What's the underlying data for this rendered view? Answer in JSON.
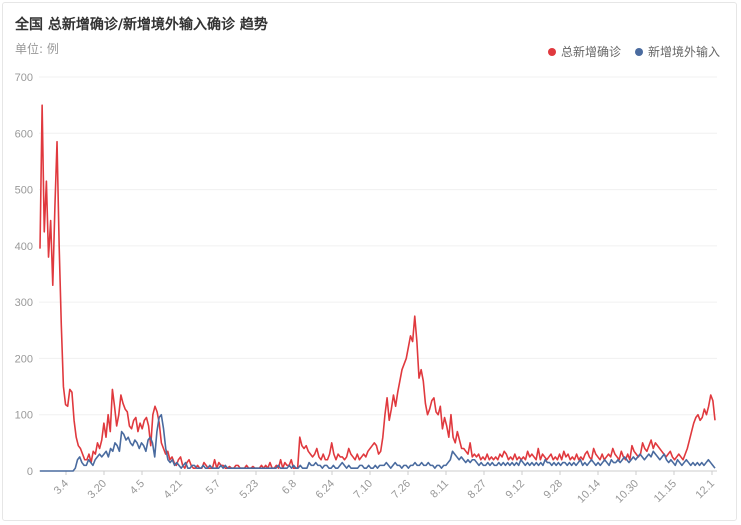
{
  "header": {
    "title": "全国 总新增确诊/新增境外输入确诊 趋势",
    "unit": "单位: 例"
  },
  "colors": {
    "total": "#e0393e",
    "imported": "#4a6b9f",
    "grid": "#f0f0f0",
    "axis": "#cccccc"
  },
  "chart_data": {
    "type": "line",
    "title": "全国 总新增确诊/新增境外输入确诊 趋势",
    "ylabel": "单位: 例",
    "ylim": [
      0,
      700
    ],
    "yticks": [
      0,
      100,
      200,
      300,
      400,
      500,
      600,
      700
    ],
    "grid": true,
    "legend_position": "top-right",
    "x_start": "2.20",
    "x_end": "12.3",
    "x_tick_labels": [
      "3.4",
      "3.20",
      "4.5",
      "4.21",
      "5.7",
      "5.23",
      "6.8",
      "6.24",
      "7.10",
      "7.26",
      "8.11",
      "8.27",
      "9.12",
      "9.28",
      "10.14",
      "10.30",
      "11.15",
      "12.1"
    ],
    "series": [
      {
        "name": "总新增确诊",
        "key": "total",
        "values": [
          395,
          650,
          425,
          515,
          380,
          445,
          330,
          470,
          585,
          400,
          260,
          150,
          118,
          115,
          145,
          140,
          90,
          60,
          45,
          40,
          30,
          20,
          20,
          30,
          15,
          35,
          30,
          50,
          40,
          55,
          85,
          60,
          100,
          70,
          145,
          115,
          80,
          100,
          135,
          120,
          110,
          105,
          80,
          75,
          90,
          95,
          70,
          85,
          75,
          90,
          95,
          80,
          45,
          100,
          115,
          105,
          85,
          50,
          40,
          30,
          35,
          20,
          25,
          15,
          10,
          20,
          25,
          10,
          5,
          15,
          20,
          10,
          5,
          5,
          10,
          5,
          5,
          15,
          10,
          5,
          5,
          5,
          20,
          5,
          15,
          10,
          10,
          5,
          5,
          8,
          5,
          5,
          10,
          10,
          5,
          5,
          5,
          10,
          5,
          5,
          8,
          5,
          5,
          5,
          10,
          5,
          10,
          5,
          15,
          5,
          5,
          10,
          5,
          20,
          5,
          15,
          10,
          10,
          20,
          5,
          5,
          5,
          60,
          45,
          40,
          45,
          35,
          30,
          25,
          30,
          40,
          25,
          20,
          30,
          20,
          20,
          30,
          50,
          30,
          20,
          30,
          25,
          25,
          20,
          25,
          40,
          30,
          25,
          20,
          30,
          20,
          25,
          30,
          25,
          35,
          40,
          45,
          50,
          45,
          30,
          35,
          60,
          100,
          130,
          90,
          110,
          135,
          115,
          140,
          160,
          180,
          190,
          200,
          220,
          240,
          230,
          275,
          230,
          165,
          180,
          160,
          120,
          100,
          110,
          125,
          130,
          105,
          100,
          115,
          75,
          95,
          80,
          60,
          100,
          60,
          50,
          70,
          55,
          40,
          40,
          35,
          30,
          50,
          25,
          30,
          25,
          30,
          20,
          25,
          20,
          30,
          20,
          25,
          20,
          25,
          20,
          30,
          25,
          35,
          30,
          20,
          25,
          20,
          30,
          20,
          25,
          20,
          25,
          20,
          35,
          25,
          30,
          25,
          20,
          40,
          20,
          30,
          25,
          20,
          25,
          30,
          20,
          25,
          20,
          30,
          20,
          35,
          25,
          30,
          20,
          25,
          20,
          30,
          20,
          25,
          20,
          30,
          35,
          25,
          20,
          40,
          30,
          25,
          20,
          30,
          20,
          25,
          30,
          25,
          40,
          30,
          25,
          20,
          35,
          25,
          20,
          30,
          20,
          45,
          35,
          30,
          25,
          30,
          50,
          40,
          35,
          45,
          55,
          40,
          50,
          45,
          40,
          35,
          30,
          25,
          30,
          35,
          25,
          20,
          25,
          30,
          25,
          20,
          30,
          40,
          55,
          70,
          85,
          95,
          100,
          90,
          95,
          110,
          100,
          115,
          135,
          125,
          90
        ]
      },
      {
        "name": "新增境外输入",
        "key": "imported",
        "values": [
          0,
          0,
          0,
          0,
          0,
          0,
          0,
          0,
          0,
          0,
          0,
          0,
          0,
          0,
          0,
          0,
          5,
          20,
          25,
          15,
          10,
          10,
          20,
          15,
          10,
          20,
          25,
          30,
          25,
          30,
          35,
          25,
          40,
          35,
          50,
          45,
          35,
          70,
          65,
          55,
          60,
          50,
          45,
          55,
          50,
          40,
          50,
          45,
          35,
          55,
          60,
          50,
          25,
          70,
          95,
          100,
          75,
          40,
          20,
          15,
          20,
          10,
          15,
          10,
          5,
          10,
          15,
          5,
          5,
          10,
          10,
          5,
          5,
          5,
          10,
          5,
          5,
          10,
          5,
          5,
          5,
          5,
          10,
          5,
          10,
          5,
          5,
          5,
          5,
          5,
          5,
          5,
          5,
          5,
          5,
          5,
          5,
          5,
          5,
          5,
          5,
          5,
          5,
          5,
          5,
          5,
          5,
          5,
          10,
          5,
          5,
          5,
          5,
          10,
          5,
          10,
          5,
          5,
          10,
          5,
          5,
          5,
          15,
          10,
          10,
          15,
          10,
          10,
          5,
          10,
          10,
          5,
          5,
          10,
          5,
          5,
          10,
          15,
          10,
          5,
          10,
          5,
          5,
          5,
          5,
          10,
          10,
          5,
          5,
          10,
          5,
          5,
          10,
          5,
          10,
          10,
          10,
          15,
          10,
          5,
          10,
          15,
          10,
          10,
          5,
          10,
          10,
          5,
          10,
          10,
          15,
          10,
          10,
          15,
          10,
          10,
          15,
          10,
          10,
          5,
          10,
          10,
          5,
          10,
          10,
          15,
          20,
          35,
          30,
          25,
          20,
          25,
          20,
          15,
          20,
          15,
          20,
          20,
          15,
          10,
          15,
          10,
          10,
          15,
          10,
          15,
          10,
          10,
          15,
          10,
          15,
          10,
          15,
          10,
          15,
          10,
          15,
          10,
          20,
          15,
          10,
          15,
          10,
          15,
          10,
          15,
          10,
          15,
          10,
          20,
          15,
          15,
          10,
          15,
          10,
          15,
          10,
          15,
          15,
          10,
          15,
          10,
          15,
          10,
          15,
          20,
          10,
          15,
          10,
          15,
          20,
          15,
          10,
          15,
          10,
          15,
          20,
          15,
          10,
          20,
          15,
          15,
          20,
          15,
          20,
          25,
          20,
          15,
          20,
          25,
          20,
          25,
          30,
          25,
          20,
          25,
          30,
          25,
          35,
          30,
          25,
          20,
          25,
          30,
          20,
          15,
          20,
          15,
          10,
          20,
          15,
          10,
          15,
          20,
          15,
          10,
          15,
          10,
          15,
          10,
          15,
          10,
          15,
          20,
          15,
          10,
          5
        ]
      }
    ]
  }
}
